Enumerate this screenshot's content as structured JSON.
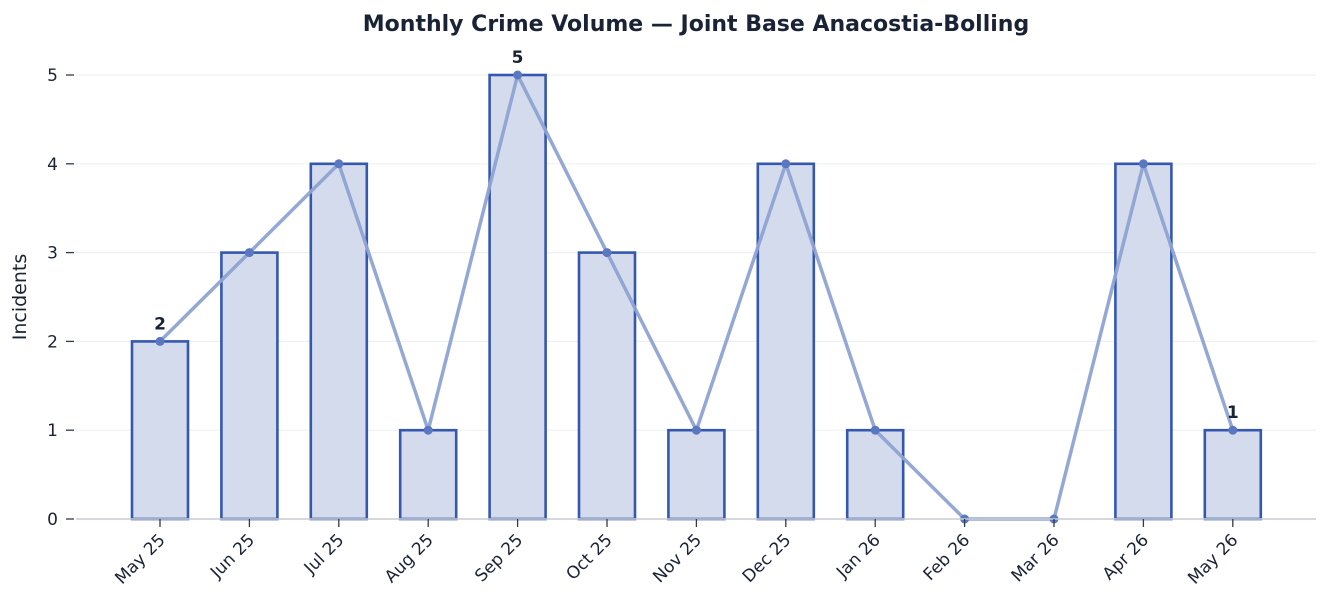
{
  "chart_data": {
    "type": "bar",
    "title": "Monthly Crime Volume — Joint Base Anacostia-Bolling",
    "xlabel": "",
    "ylabel": "Incidents",
    "categories": [
      "May 25",
      "Jun 25",
      "Jul 25",
      "Aug 25",
      "Sep 25",
      "Oct 25",
      "Nov 25",
      "Dec 25",
      "Jan 26",
      "Feb 26",
      "Mar 26",
      "Apr 26",
      "May 26"
    ],
    "values": [
      2,
      3,
      4,
      1,
      5,
      3,
      1,
      4,
      1,
      0,
      0,
      4,
      1
    ],
    "overlay_line": true,
    "ylim": [
      0,
      5
    ],
    "yticks": [
      0,
      1,
      2,
      3,
      4,
      5
    ],
    "data_labels": [
      {
        "category": "May 25",
        "text": "2"
      },
      {
        "category": "Sep 25",
        "text": "5"
      },
      {
        "category": "May 26",
        "text": "1"
      }
    ],
    "grid": "horizontal",
    "colors": {
      "bar_fill": "#d3dbec",
      "bar_edge": "#3557b0",
      "line": "#8ea3d3",
      "marker": "#5a78c2",
      "grid": "#eef0f4",
      "axis": "#c9ccd4",
      "text": "#1a2236"
    }
  }
}
